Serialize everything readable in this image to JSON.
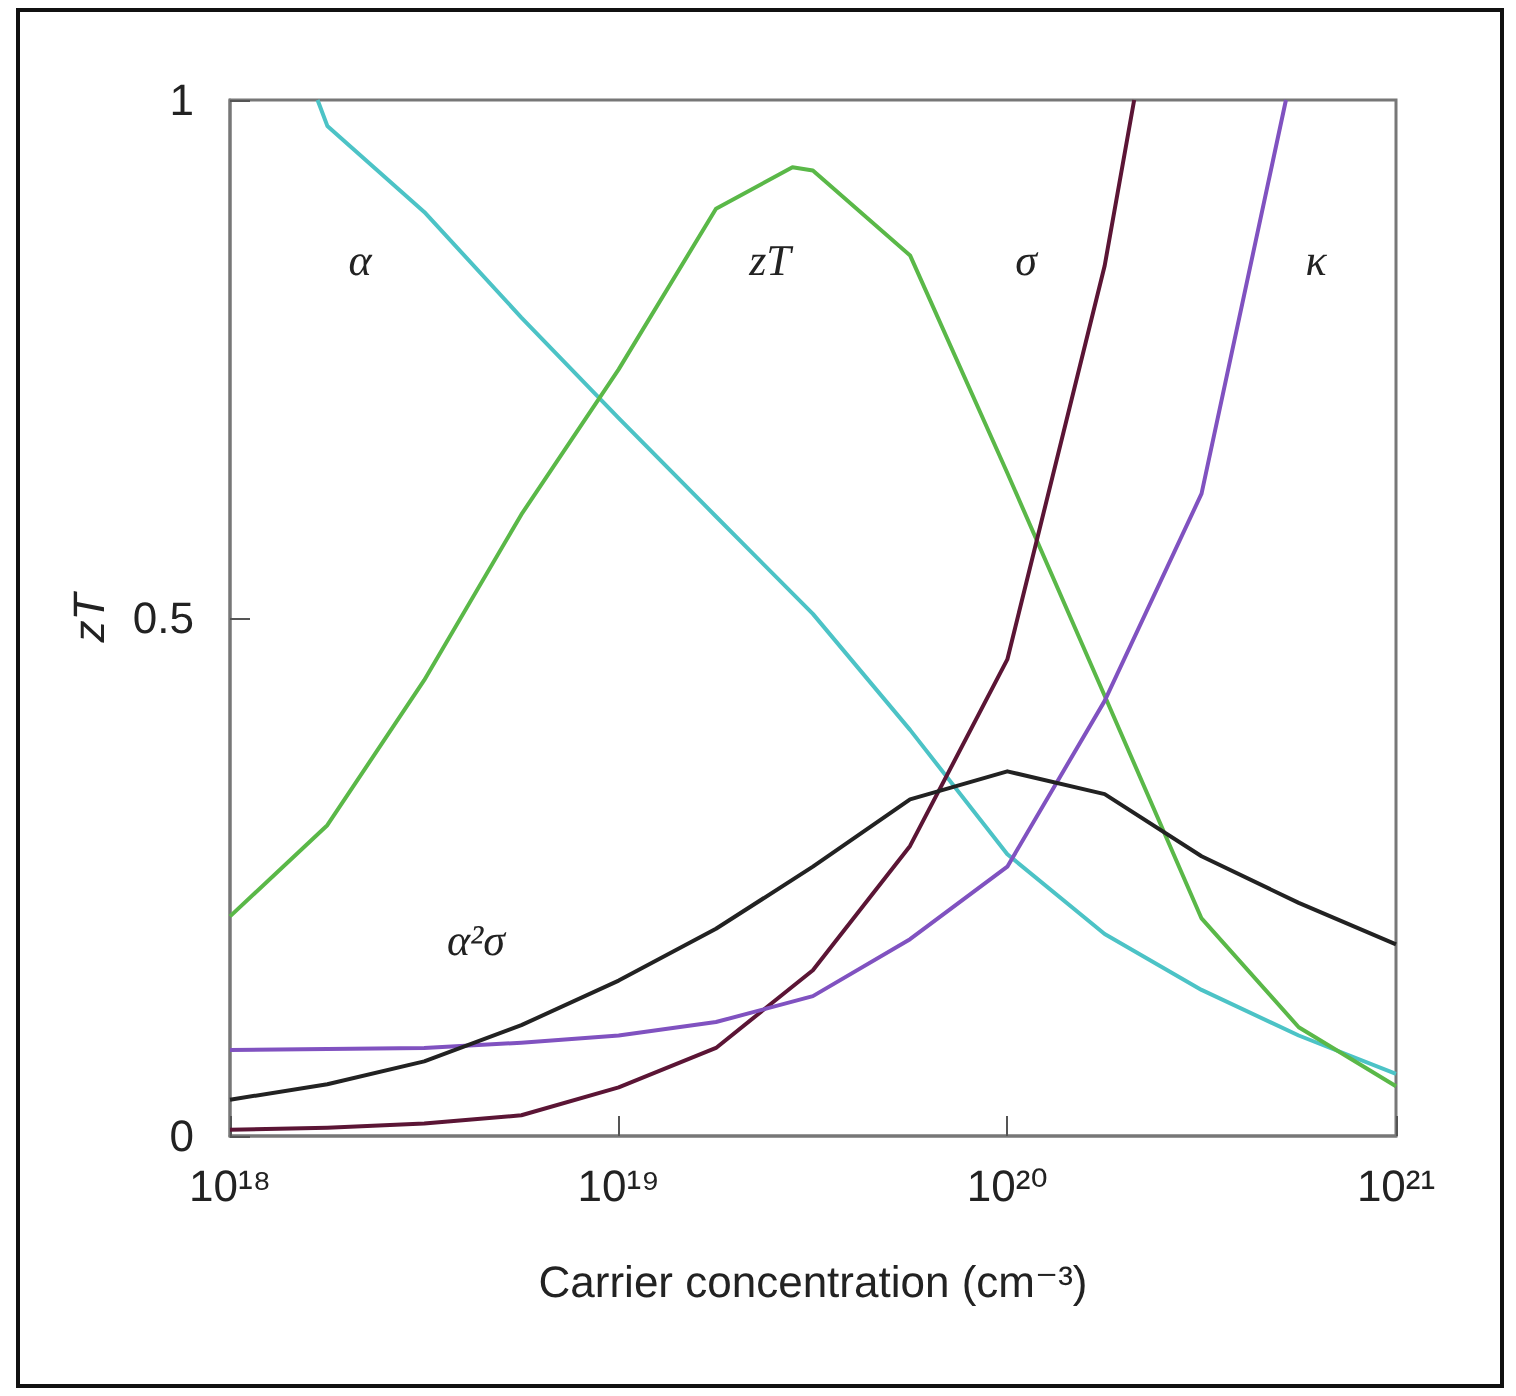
{
  "chart_data": {
    "type": "line",
    "xlabel": "Carrier concentration (cm⁻³)",
    "ylabel": "zT",
    "log": "x",
    "xlim": [
      1e+18,
      1e+21
    ],
    "xticks": [
      {
        "value": 1e+18,
        "label": "10¹⁸"
      },
      {
        "value": 1e+19,
        "label": "10¹⁹"
      },
      {
        "value": 1e+20,
        "label": "10²⁰"
      },
      {
        "value": 1e+21,
        "label": "10²¹"
      }
    ],
    "ylim": [
      0,
      1
    ],
    "yticks": [
      0,
      0.5,
      1
    ],
    "grid": false,
    "legend": false,
    "marker": "none",
    "line_style": "solid",
    "series": [
      {
        "name": "α",
        "color": "#4cc3c6",
        "x": [
          1.68e+18,
          1.78e+18,
          3.16e+18,
          5.62e+18,
          1e+19,
          1.78e+19,
          3.16e+19,
          5.62e+19,
          1e+20,
          1.78e+20,
          3.16e+20,
          5.62e+20,
          1e+21
        ],
        "values": [
          1,
          0.975,
          0.892,
          0.79,
          0.693,
          0.598,
          0.504,
          0.392,
          0.272,
          0.195,
          0.141,
          0.097,
          0.06
        ]
      },
      {
        "name": "zT",
        "color": "#5ab848",
        "x": [
          1e+18,
          1.78e+18,
          3.16e+18,
          5.62e+18,
          1e+19,
          1.78e+19,
          2.8e+19,
          3.16e+19,
          5.62e+19,
          1e+20,
          1.78e+20,
          3.16e+20,
          5.62e+20,
          1e+21
        ],
        "values": [
          0.212,
          0.3,
          0.44,
          0.6,
          0.74,
          0.895,
          0.935,
          0.932,
          0.85,
          0.64,
          0.425,
          0.21,
          0.105,
          0.048
        ]
      },
      {
        "name": "σ",
        "color": "#5b1535",
        "x": [
          1e+18,
          1.78e+18,
          3.16e+18,
          5.62e+18,
          1e+19,
          1.78e+19,
          3.16e+19,
          5.62e+19,
          1e+20,
          1.78e+20,
          2.12e+20
        ],
        "values": [
          0.006,
          0.008,
          0.012,
          0.02,
          0.047,
          0.085,
          0.16,
          0.28,
          0.46,
          0.84,
          1
        ]
      },
      {
        "name": "κ",
        "color": "#8052c0",
        "x": [
          1e+18,
          1.78e+18,
          3.16e+18,
          5.62e+18,
          1e+19,
          1.78e+19,
          3.16e+19,
          5.62e+19,
          1e+20,
          1.78e+20,
          3.16e+20,
          5.21e+20
        ],
        "values": [
          0.083,
          0.084,
          0.085,
          0.09,
          0.097,
          0.11,
          0.135,
          0.19,
          0.26,
          0.42,
          0.62,
          1
        ]
      },
      {
        "name": "α²σ",
        "color": "#222222",
        "x": [
          1e+18,
          1.78e+18,
          3.16e+18,
          5.62e+18,
          1e+19,
          1.78e+19,
          3.16e+19,
          5.62e+19,
          1e+20,
          1.78e+20,
          3.16e+20,
          5.62e+20,
          1e+21
        ],
        "values": [
          0.035,
          0.05,
          0.072,
          0.107,
          0.15,
          0.2,
          0.26,
          0.325,
          0.352,
          0.33,
          0.27,
          0.225,
          0.185
        ]
      }
    ]
  }
}
